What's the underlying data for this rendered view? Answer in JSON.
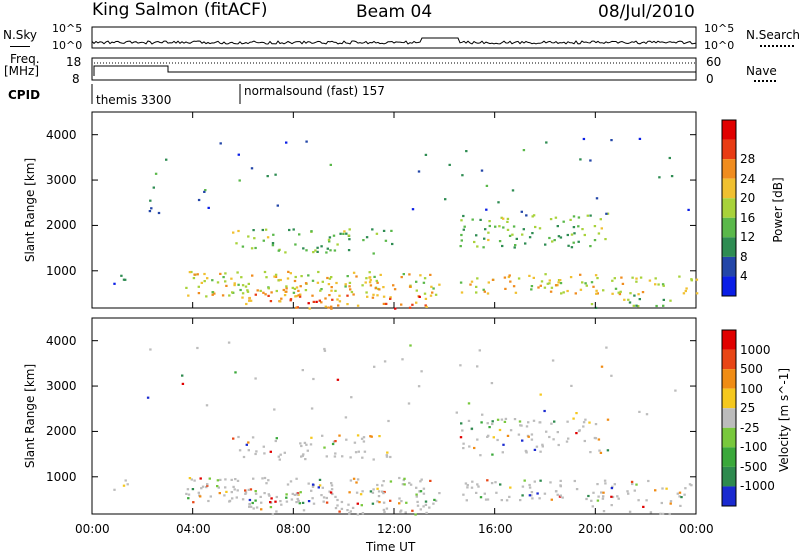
{
  "header": {
    "title": "King Salmon (fitACF)",
    "beam": "Beam 04",
    "date": "08/Jul/2010"
  },
  "top_panels": {
    "nsky_label": "N.Sky",
    "nsearch_label": "N.Search",
    "nsky_ticks": [
      "10^5",
      "10^0"
    ],
    "nsearch_ticks": [
      "10^5",
      "10^0"
    ],
    "freq_label_1": "Freq.",
    "freq_label_2": "[MHz]",
    "freq_ticks": [
      "18",
      "8"
    ],
    "nave_label": "Nave",
    "nave_ticks": [
      "60",
      "0"
    ],
    "cpid_label": "CPID",
    "cpid_segments": [
      "themis 3300",
      "normalsound (fast) 157"
    ]
  },
  "chart_data": [
    {
      "type": "heatmap",
      "panel": "power",
      "title": "",
      "xlabel": "",
      "ylabel": "Slant Range [km]",
      "x_ticks": [
        "00:00",
        "04:00",
        "08:00",
        "12:00",
        "16:00",
        "20:00",
        "00:00"
      ],
      "x_hours": [
        0,
        4,
        8,
        12,
        16,
        20,
        24
      ],
      "y_ticks": [
        "1000",
        "2000",
        "3000",
        "4000"
      ],
      "y_tick_values": [
        1000,
        2000,
        3000,
        4000
      ],
      "ylim": [
        180,
        4500
      ],
      "xlim": [
        0,
        24
      ],
      "colorbar": {
        "label": "Power [dB]",
        "ticks": [
          "4",
          "8",
          "12",
          "16",
          "20",
          "24",
          "28"
        ],
        "colors": [
          "#0a1ee6",
          "#2346a8",
          "#2e8c52",
          "#5ab84a",
          "#a8d23a",
          "#f0c030",
          "#f08c1e",
          "#e83c14",
          "#e00000"
        ]
      }
    },
    {
      "type": "heatmap",
      "panel": "velocity",
      "title": "",
      "xlabel": "Time UT",
      "ylabel": "Slant Range [km]",
      "x_ticks": [
        "00:00",
        "04:00",
        "08:00",
        "12:00",
        "16:00",
        "20:00",
        "00:00"
      ],
      "x_hours": [
        0,
        4,
        8,
        12,
        16,
        20,
        24
      ],
      "y_ticks": [
        "1000",
        "2000",
        "3000",
        "4000"
      ],
      "y_tick_values": [
        1000,
        2000,
        3000,
        4000
      ],
      "ylim": [
        180,
        4500
      ],
      "xlim": [
        0,
        24
      ],
      "colorbar": {
        "label": "Velocity [m s^-1]",
        "ticks": [
          "1000",
          "500",
          "100",
          "25",
          "-25",
          "-100",
          "-500",
          "-1000"
        ],
        "colors": [
          "#1a2ad0",
          "#2e8a4e",
          "#3aa83a",
          "#78c83c",
          "#bcbcbc",
          "#f5c81e",
          "#f08c14",
          "#e84616",
          "#e00000"
        ]
      }
    }
  ]
}
